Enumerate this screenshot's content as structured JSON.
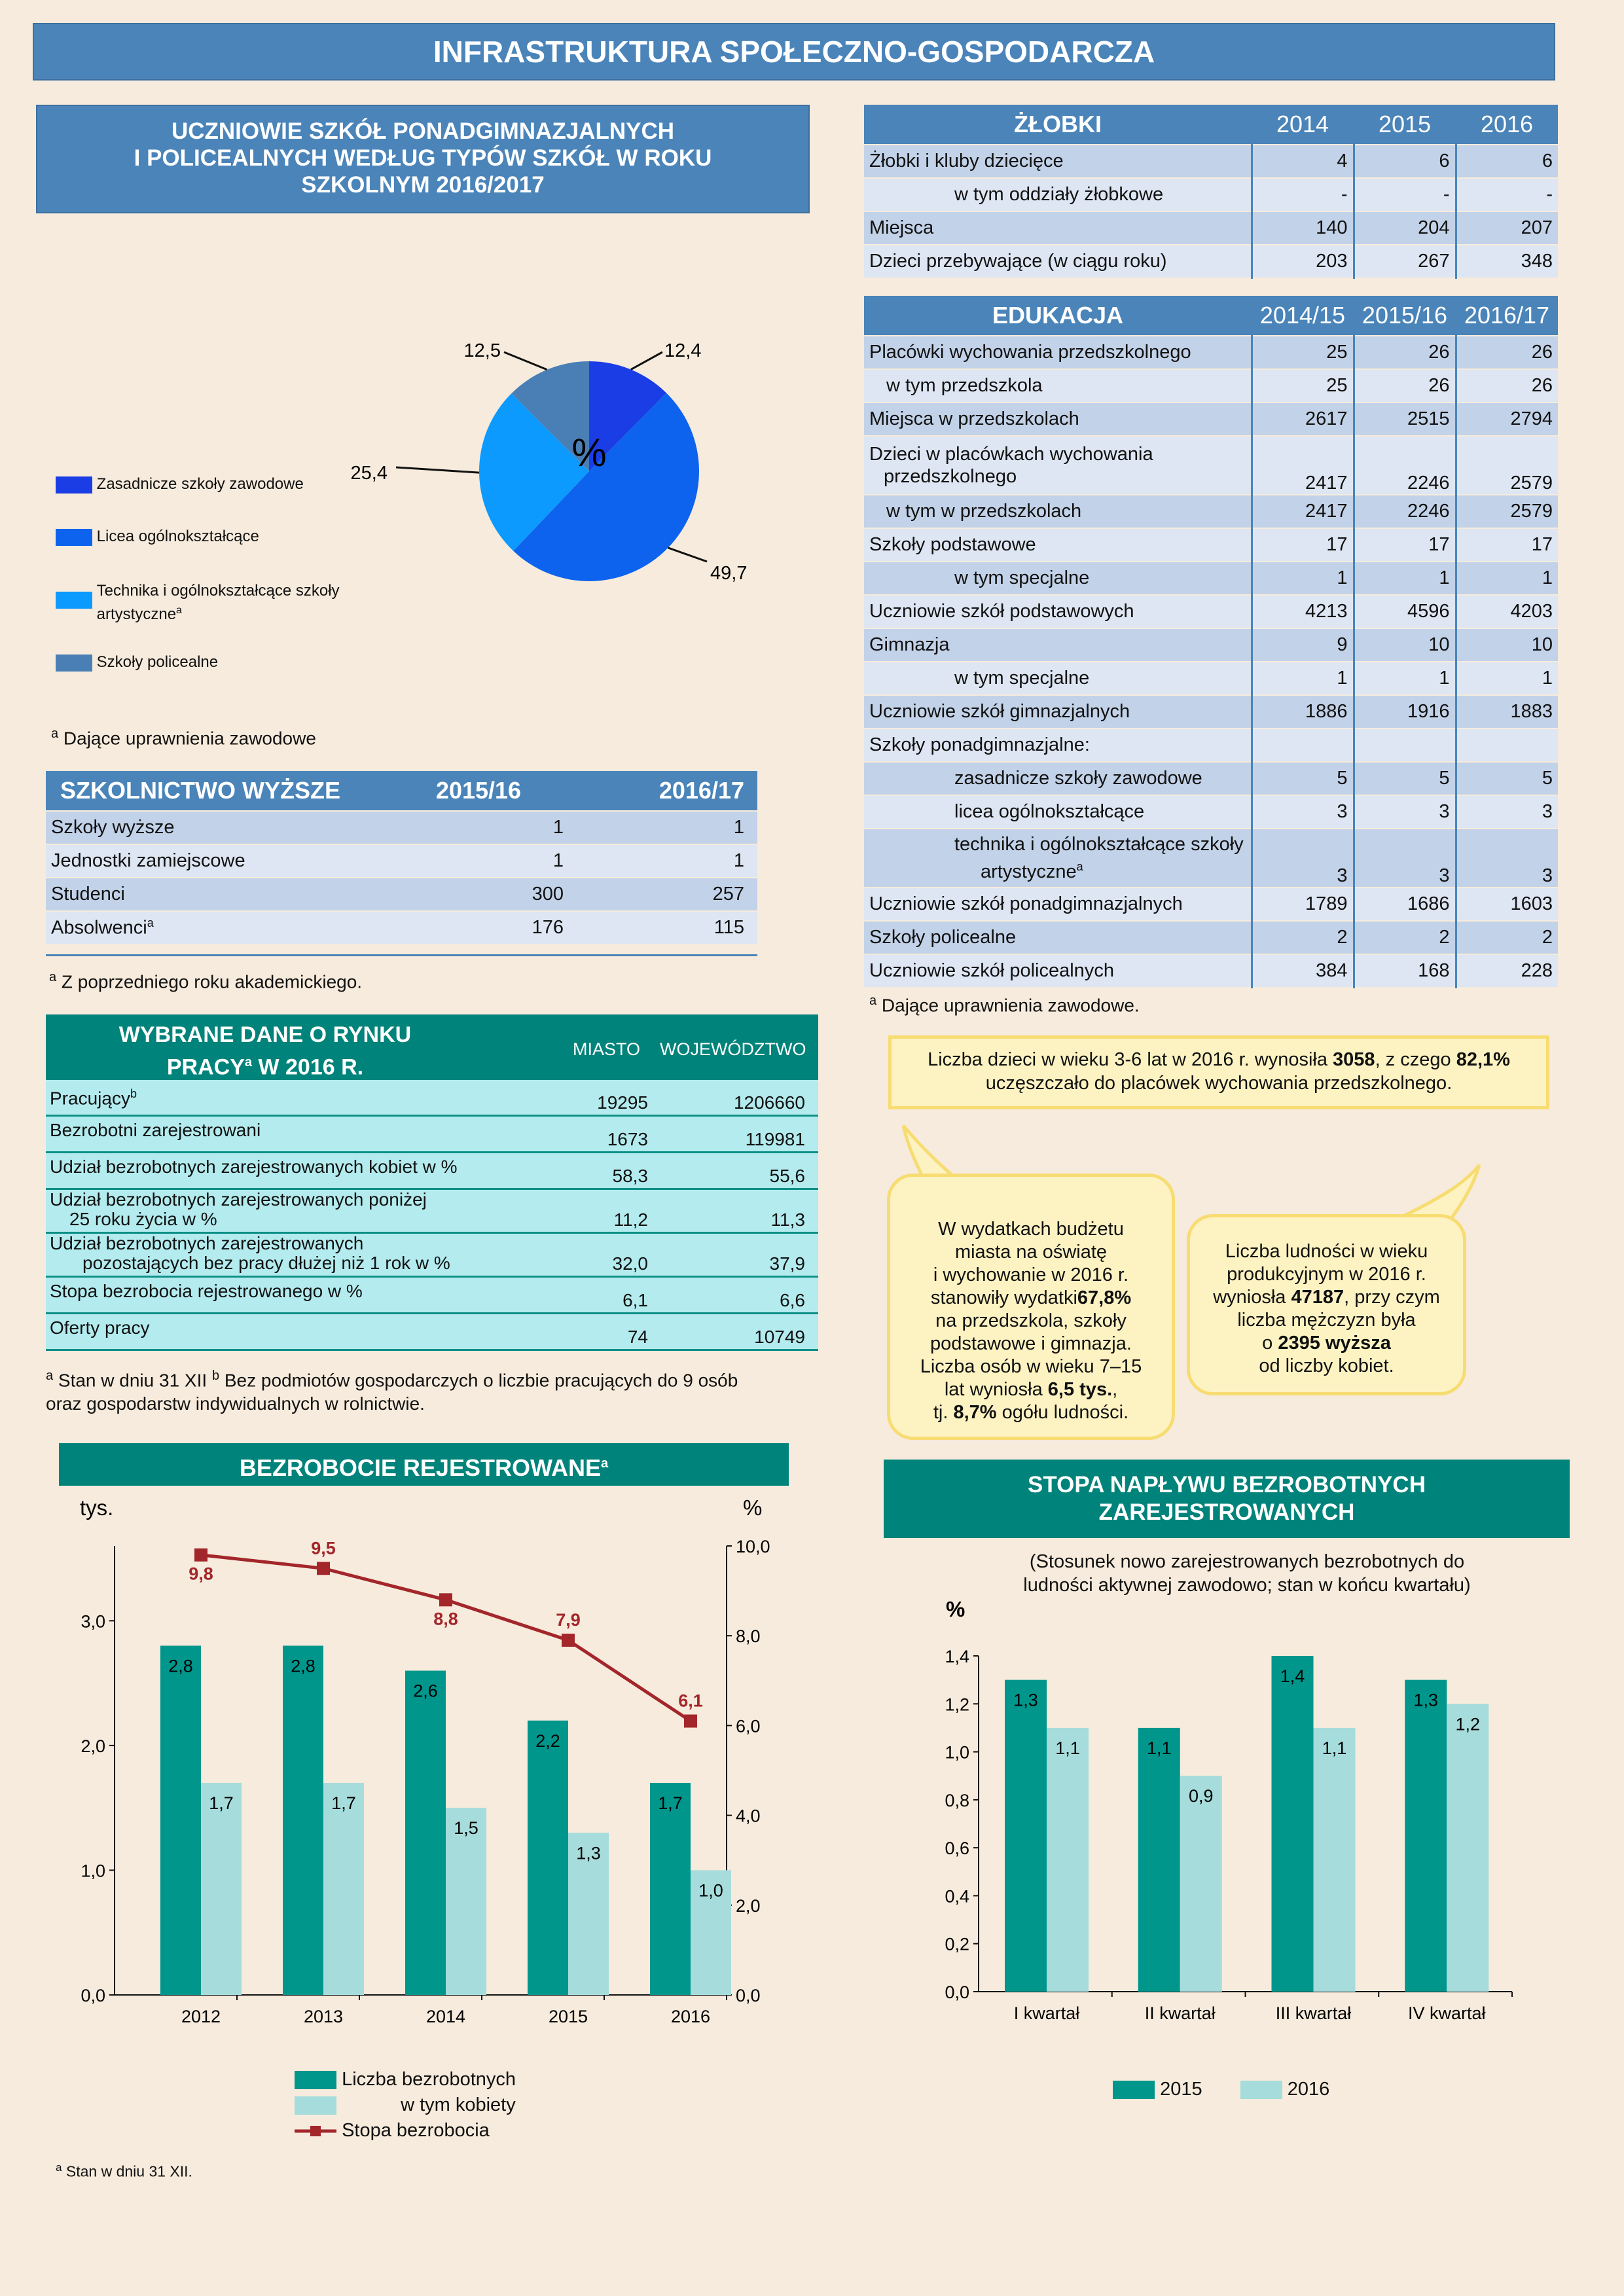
{
  "main_title": "INFRASTRUKTURA SPOŁECZNO-GOSPODARCZA",
  "schools": {
    "title_lines": [
      "UCZNIOWIE SZKÓŁ PONADGIMNAZJALNYCH",
      "I POLICEALNYCH WEDŁUG TYPÓW SZKÓŁ W ROKU",
      "SZKOLNYM 2016/2017"
    ],
    "center_label": "%",
    "legend": [
      {
        "label": "Zasadnicze szkoły zawodowe",
        "color": "#1a3de6"
      },
      {
        "label": "Licea ogólnokształcące",
        "color": "#0d63ee"
      },
      {
        "label": "Technika i ogólnokształcące szkoły artystyczne",
        "sup": "a",
        "color": "#0c9aff"
      },
      {
        "label": "Szkoły policealne",
        "color": "#4a7fb6"
      }
    ],
    "note_sup": "a",
    "note": "Dające uprawnienia zawodowe"
  },
  "chart_data": [
    {
      "type": "pie",
      "slices": [
        {
          "label": "Zasadnicze szkoły zawodowe",
          "value": 12.4,
          "display": "12,4",
          "color": "#1a3de6"
        },
        {
          "label": "Licea ogólnokształcące",
          "value": 49.7,
          "display": "49,7",
          "color": "#0d63ee"
        },
        {
          "label": "Technika i ogólnokształcące szkoły artystyczne",
          "value": 25.4,
          "display": "25,4",
          "color": "#0c9aff"
        },
        {
          "label": "Szkoły policealne",
          "value": 12.5,
          "display": "12,5",
          "color": "#4a7fb6"
        }
      ]
    },
    {
      "type": "bar+line",
      "title": "BEZROBOCIE REJESTROWANE",
      "title_sup": "a",
      "left_unit": "tys.",
      "right_unit": "%",
      "categories": [
        "2012",
        "2013",
        "2014",
        "2015",
        "2016"
      ],
      "series": [
        {
          "name": "Liczba bezrobotnych",
          "values": [
            2.8,
            2.8,
            2.6,
            2.2,
            1.7
          ],
          "labels": [
            "2,8",
            "2,8",
            "2,6",
            "2,2",
            "1,7"
          ],
          "color": "#00968c"
        },
        {
          "name": "w tym kobiety",
          "values": [
            1.7,
            1.7,
            1.5,
            1.3,
            1.0
          ],
          "labels": [
            "1,7",
            "1,7",
            "1,5",
            "1,3",
            "1,0"
          ],
          "color": "#a6dcdc"
        },
        {
          "name": "Stopa bezrobocia",
          "values": [
            9.8,
            9.5,
            8.8,
            7.9,
            6.1
          ],
          "labels": [
            "9,8",
            "9,5",
            "8,8",
            "7,9",
            "6,1"
          ],
          "color": "#a3262b",
          "axis": "right"
        }
      ],
      "ylim_left": [
        0,
        3.6
      ],
      "ylim_right": [
        0,
        10
      ],
      "left_ticks": [
        "0,0",
        "1,0",
        "2,0",
        "3,0"
      ],
      "right_ticks": [
        "0,0",
        "2,0",
        "4,0",
        "6,0",
        "8,0",
        "10,0"
      ],
      "note_sup": "a",
      "note": "Stan w dniu 31 XII."
    },
    {
      "type": "bar",
      "title_lines": [
        "STOPA NAPŁYWU BEZROBOTNYCH",
        "ZAREJESTROWANYCH"
      ],
      "subtitle_lines": [
        "(Stosunek nowo zarejestrowanych bezrobotnych do",
        "ludności aktywnej zawodowo; stan w końcu kwartału)"
      ],
      "ylabel": "%",
      "categories": [
        "I kwartał",
        "II kwartał",
        "III kwartał",
        "IV kwartał"
      ],
      "series": [
        {
          "name": "2015",
          "values": [
            1.3,
            1.1,
            1.4,
            1.3
          ],
          "labels": [
            "1,3",
            "1,1",
            "1,4",
            "1,3"
          ],
          "color": "#00968c"
        },
        {
          "name": "2016",
          "values": [
            1.1,
            0.9,
            1.1,
            1.2
          ],
          "labels": [
            "1,1",
            "0,9",
            "1,1",
            "1,2"
          ],
          "color": "#a6dcdc"
        }
      ],
      "ylim": [
        0,
        1.4
      ],
      "ticks": [
        "0,0",
        "0,2",
        "0,4",
        "0,6",
        "0,8",
        "1,0",
        "1,2",
        "1,4"
      ]
    }
  ],
  "nursery": {
    "head": [
      "ŻŁOBKI",
      "2014",
      "2015",
      "2016"
    ],
    "rows": [
      {
        "label": "Żłobki i kluby dziecięce",
        "indent": 0,
        "vals": [
          "4",
          "6",
          "6"
        ]
      },
      {
        "label": "w tym oddziały żłobkowe",
        "indent": 2,
        "vals": [
          "-",
          "-",
          "-"
        ]
      },
      {
        "label": "Miejsca",
        "indent": 0,
        "vals": [
          "140",
          "204",
          "207"
        ]
      },
      {
        "label": "Dzieci przebywające (w ciągu roku)",
        "indent": 0,
        "vals": [
          "203",
          "267",
          "348"
        ]
      }
    ]
  },
  "education": {
    "head": [
      "EDUKACJA",
      "2014/15",
      "2015/16",
      "2016/17"
    ],
    "rows": [
      {
        "label": "Placówki wychowania przedszkolnego",
        "indent": 0,
        "vals": [
          "25",
          "26",
          "26"
        ]
      },
      {
        "label": "w tym przedszkola",
        "indent": 1,
        "vals": [
          "25",
          "26",
          "26"
        ]
      },
      {
        "label": "Miejsca w przedszkolach",
        "indent": 0,
        "vals": [
          "2617",
          "2515",
          "2794"
        ]
      },
      {
        "label": "Dzieci w placówkach wychowania",
        "label2": "przedszkolnego",
        "indent": 0,
        "tall": true,
        "vals": [
          "2417",
          "2246",
          "2579"
        ]
      },
      {
        "label": "w tym w przedszkolach",
        "indent": 1,
        "vals": [
          "2417",
          "2246",
          "2579"
        ]
      },
      {
        "label": "Szkoły podstawowe",
        "indent": 0,
        "vals": [
          "17",
          "17",
          "17"
        ]
      },
      {
        "label": "w tym specjalne",
        "indent": 2,
        "vals": [
          "1",
          "1",
          "1"
        ]
      },
      {
        "label": "Uczniowie szkół podstawowych",
        "indent": 0,
        "vals": [
          "4213",
          "4596",
          "4203"
        ]
      },
      {
        "label": "Gimnazja",
        "indent": 0,
        "vals": [
          "9",
          "10",
          "10"
        ]
      },
      {
        "label": "w tym specjalne",
        "indent": 2,
        "vals": [
          "1",
          "1",
          "1"
        ]
      },
      {
        "label": "Uczniowie szkół gimnazjalnych",
        "indent": 0,
        "vals": [
          "1886",
          "1916",
          "1883"
        ]
      },
      {
        "label": "Szkoły ponadgimnazjalne:",
        "indent": 0,
        "vals": [
          "",
          "",
          ""
        ]
      },
      {
        "label": "zasadnicze szkoły zawodowe",
        "indent": 2,
        "vals": [
          "5",
          "5",
          "5"
        ]
      },
      {
        "label": "licea ogólnokształcące",
        "indent": 2,
        "vals": [
          "3",
          "3",
          "3"
        ]
      },
      {
        "label": "technika i ogólnokształcące szkoły",
        "label2": "artystyczne",
        "sup": "a",
        "indent": 2,
        "tall": true,
        "vals": [
          "3",
          "3",
          "3"
        ]
      },
      {
        "label": "Uczniowie szkół ponadgimnazjalnych",
        "indent": 0,
        "vals": [
          "1789",
          "1686",
          "1603"
        ]
      },
      {
        "label": "Szkoły policealne",
        "indent": 0,
        "vals": [
          "2",
          "2",
          "2"
        ]
      },
      {
        "label": "Uczniowie szkół policealnych",
        "indent": 0,
        "vals": [
          "384",
          "168",
          "228"
        ]
      }
    ],
    "note_sup": "a",
    "note": "Dające uprawnienia zawodowe."
  },
  "higher": {
    "head": [
      "SZKOLNICTWO WYŻSZE",
      "2015/16",
      "2016/17"
    ],
    "rows": [
      {
        "label": "Szkoły wyższe",
        "vals": [
          "1",
          "1"
        ]
      },
      {
        "label": "Jednostki zamiejscowe",
        "vals": [
          "1",
          "1"
        ]
      },
      {
        "label": "Studenci",
        "vals": [
          "300",
          "257"
        ]
      },
      {
        "label": "Absolwenci",
        "sup": "a",
        "vals": [
          "176",
          "115"
        ]
      }
    ],
    "note_sup": "a",
    "note": "Z poprzedniego roku akademickiego."
  },
  "labour": {
    "title_line1": "WYBRANE DANE O RYNKU",
    "title_line2a": "PRACY",
    "title_sup": "a",
    "title_line2b": " W 2016 R.",
    "col1": "MIASTO",
    "col2": "WOJEWÓDZTWO",
    "rows": [
      {
        "label": "Pracujący",
        "sup": "b",
        "vals": [
          "19295",
          "1206660"
        ]
      },
      {
        "label": "Bezrobotni zarejestrowani",
        "vals": [
          "1673",
          "119981"
        ]
      },
      {
        "label": "Udział bezrobotnych zarejestrowanych kobiet w %",
        "vals": [
          "58,3",
          "55,6"
        ]
      },
      {
        "label": "Udział bezrobotnych zarejestrowanych poniżej",
        "label2": "25 roku życia w %",
        "vals": [
          "11,2",
          "11,3"
        ]
      },
      {
        "label": "Udział bezrobotnych zarejestrowanych",
        "label2": "pozostających bez pracy dłużej niż 1 rok w %",
        "vals": [
          "32,0",
          "37,9"
        ]
      },
      {
        "label": "Stopa bezrobocia rejestrowanego w %",
        "vals": [
          "6,1",
          "6,6"
        ]
      },
      {
        "label": "Oferty pracy",
        "vals": [
          "74",
          "10749"
        ]
      }
    ],
    "note_a_sup": "a",
    "note_a": "Stan w dniu 31 XII",
    "note_b_sup": "b",
    "note_b": "Bez podmiotów gospodarczych o liczbie pracujących do 9 osób",
    "note_b2": "oraz gospodarstw indywidualnych w rolnictwie."
  },
  "info_box": {
    "line1_a": "Liczba dzieci w wieku 3-6 lat w 2016 r. wynosiła ",
    "line1_b": "3058",
    "line1_c": ", z czego ",
    "line1_d": "82,1%",
    "line2": "uczęszczało do placówek wychowania przedszkolnego."
  },
  "bubble_left": [
    {
      "t": "W wydatkach budżetu"
    },
    {
      "t": "miasta na oświatę"
    },
    {
      "t": "i wychowanie w 2016 r."
    },
    {
      "b": "67,8%",
      "t": " stanowiły wydatki"
    },
    {
      "t": "na przedszkola, szkoły"
    },
    {
      "t": "podstawowe i gimnazja."
    },
    {
      "t": "Liczba osób w wieku 7–15"
    },
    {
      "t": "lat wyniosła ",
      "b": "6,5 tys.",
      "t2": ","
    },
    {
      "t": "tj. ",
      "b": "8,7%",
      "t2": " ogółu ludności."
    }
  ],
  "bubble_right": [
    {
      "t": "Liczba ludności w wieku"
    },
    {
      "t": "produkcyjnym w 2016 r."
    },
    {
      "t": "wyniosła ",
      "b": "47187",
      "t2": ", przy czym"
    },
    {
      "t": "liczba mężczyzn była"
    },
    {
      "t": "o ",
      "b": "2395 wyższa"
    },
    {
      "t": "od liczby kobiet."
    }
  ]
}
